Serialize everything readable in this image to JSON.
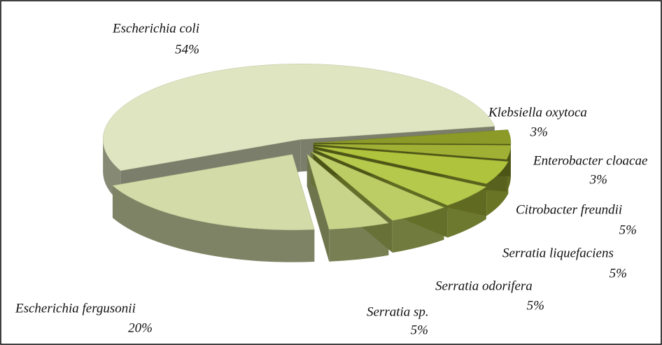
{
  "chart_data": {
    "type": "pie",
    "categories": [
      "Escherichia coli",
      "Escherichia fergusonii",
      "Serratia sp.",
      "Serratia odorifera",
      "Serratia liquefaciens",
      "Citrobacter freundii",
      "Enterobacter cloacae",
      "Klebsiella  oxytoca"
    ],
    "values": [
      54,
      20,
      5,
      5,
      5,
      5,
      3,
      3
    ],
    "value_labels": [
      "54%",
      "20%",
      "5%",
      "5%",
      "5%",
      "5%",
      "3%",
      "3%"
    ],
    "colors": [
      "#dfe5c0",
      "#d3dba8",
      "#c8d48a",
      "#bccd66",
      "#b5c94c",
      "#afc33c",
      "#a0b035",
      "#8c9a28"
    ]
  }
}
